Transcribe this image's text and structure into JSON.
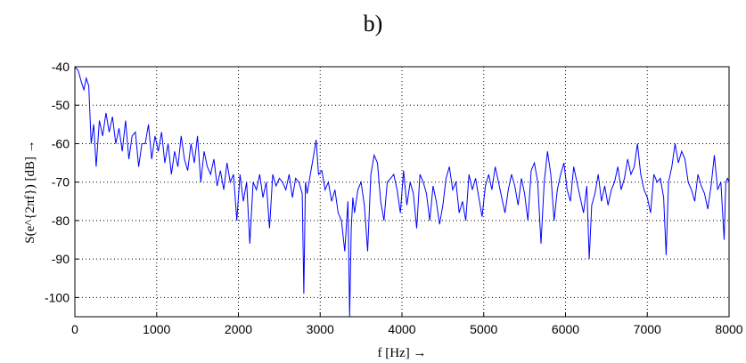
{
  "caption": "b)",
  "chart_data": {
    "type": "line",
    "xlabel": "f [Hz] →",
    "ylabel": "S(e^{2πf}) [dB] →",
    "xlim": [
      0,
      8000
    ],
    "ylim": [
      -105,
      -40
    ],
    "xticks": [
      0,
      1000,
      2000,
      3000,
      4000,
      5000,
      6000,
      7000,
      8000
    ],
    "yticks": [
      -40,
      -50,
      -60,
      -70,
      -80,
      -90,
      -100
    ],
    "grid": true,
    "line_color": "#0000ff",
    "series": [
      {
        "x": [
          0,
          40,
          80,
          110,
          140,
          170,
          200,
          230,
          260,
          300,
          340,
          380,
          420,
          460,
          500,
          540,
          580,
          620,
          660,
          700,
          740,
          780,
          820,
          860,
          900,
          940,
          980,
          1020,
          1060,
          1100,
          1140,
          1180,
          1220,
          1260,
          1300,
          1340,
          1380,
          1420,
          1460,
          1500,
          1540,
          1580,
          1620,
          1660,
          1700,
          1740,
          1780,
          1820,
          1860,
          1900,
          1940,
          1980,
          2020,
          2060,
          2100,
          2140,
          2180,
          2220,
          2260,
          2300,
          2340,
          2380,
          2420,
          2460,
          2500,
          2540,
          2580,
          2620,
          2660,
          2700,
          2740,
          2780,
          2800,
          2820,
          2840,
          2880,
          2920,
          2950,
          2980,
          3020,
          3060,
          3100,
          3140,
          3180,
          3220,
          3260,
          3300,
          3340,
          3360,
          3380,
          3400,
          3420,
          3460,
          3500,
          3540,
          3580,
          3620,
          3660,
          3700,
          3740,
          3780,
          3820,
          3860,
          3900,
          3940,
          3980,
          4020,
          4060,
          4100,
          4140,
          4180,
          4220,
          4260,
          4300,
          4340,
          4380,
          4420,
          4460,
          4500,
          4540,
          4580,
          4620,
          4660,
          4700,
          4740,
          4780,
          4820,
          4860,
          4900,
          4940,
          4980,
          5020,
          5060,
          5100,
          5140,
          5180,
          5220,
          5260,
          5300,
          5340,
          5380,
          5420,
          5460,
          5500,
          5540,
          5580,
          5620,
          5660,
          5700,
          5740,
          5780,
          5820,
          5860,
          5900,
          5940,
          5980,
          6020,
          6060,
          6100,
          6140,
          6180,
          6220,
          6260,
          6290,
          6320,
          6360,
          6400,
          6440,
          6480,
          6520,
          6560,
          6600,
          6640,
          6680,
          6720,
          6760,
          6800,
          6840,
          6880,
          6920,
          6960,
          7000,
          7040,
          7080,
          7120,
          7160,
          7200,
          7230,
          7260,
          7300,
          7340,
          7380,
          7420,
          7460,
          7500,
          7540,
          7580,
          7620,
          7660,
          7700,
          7740,
          7780,
          7820,
          7860,
          7900,
          7940,
          7960,
          7980,
          8000
        ],
        "y": [
          -40,
          -41,
          -44,
          -46,
          -43,
          -45,
          -60,
          -55,
          -66,
          -54,
          -58,
          -52,
          -57,
          -53,
          -60,
          -56,
          -62,
          -54,
          -64,
          -58,
          -57,
          -66,
          -60,
          -60,
          -55,
          -64,
          -58,
          -62,
          -57,
          -65,
          -60,
          -68,
          -62,
          -66,
          -58,
          -64,
          -67,
          -60,
          -65,
          -58,
          -70,
          -62,
          -66,
          -68,
          -64,
          -71,
          -67,
          -72,
          -65,
          -70,
          -68,
          -80,
          -68,
          -75,
          -70,
          -86,
          -70,
          -72,
          -68,
          -74,
          -70,
          -82,
          -68,
          -71,
          -69,
          -70,
          -72,
          -68,
          -74,
          -69,
          -70,
          -73,
          -99,
          -70,
          -73,
          -68,
          -63,
          -59,
          -68,
          -67,
          -72,
          -70,
          -75,
          -72,
          -78,
          -80,
          -88,
          -75,
          -105,
          -82,
          -74,
          -78,
          -72,
          -70,
          -76,
          -88,
          -68,
          -63,
          -65,
          -75,
          -80,
          -70,
          -69,
          -68,
          -72,
          -78,
          -67,
          -76,
          -70,
          -73,
          -82,
          -68,
          -70,
          -73,
          -80,
          -71,
          -75,
          -81,
          -76,
          -69,
          -66,
          -72,
          -70,
          -78,
          -75,
          -80,
          -68,
          -72,
          -69,
          -74,
          -79,
          -71,
          -68,
          -72,
          -66,
          -70,
          -74,
          -78,
          -72,
          -68,
          -71,
          -76,
          -69,
          -73,
          -80,
          -67,
          -65,
          -70,
          -86,
          -70,
          -62,
          -68,
          -80,
          -72,
          -68,
          -65,
          -72,
          -75,
          -66,
          -70,
          -74,
          -78,
          -71,
          -90,
          -76,
          -73,
          -68,
          -75,
          -71,
          -76,
          -72,
          -70,
          -66,
          -72,
          -69,
          -64,
          -68,
          -66,
          -60,
          -68,
          -72,
          -74,
          -78,
          -68,
          -70,
          -69,
          -74,
          -89,
          -70,
          -66,
          -60,
          -65,
          -62,
          -64,
          -70,
          -72,
          -75,
          -68,
          -71,
          -73,
          -77,
          -71,
          -63,
          -72,
          -70,
          -85,
          -70,
          -69,
          -70
        ]
      }
    ]
  }
}
